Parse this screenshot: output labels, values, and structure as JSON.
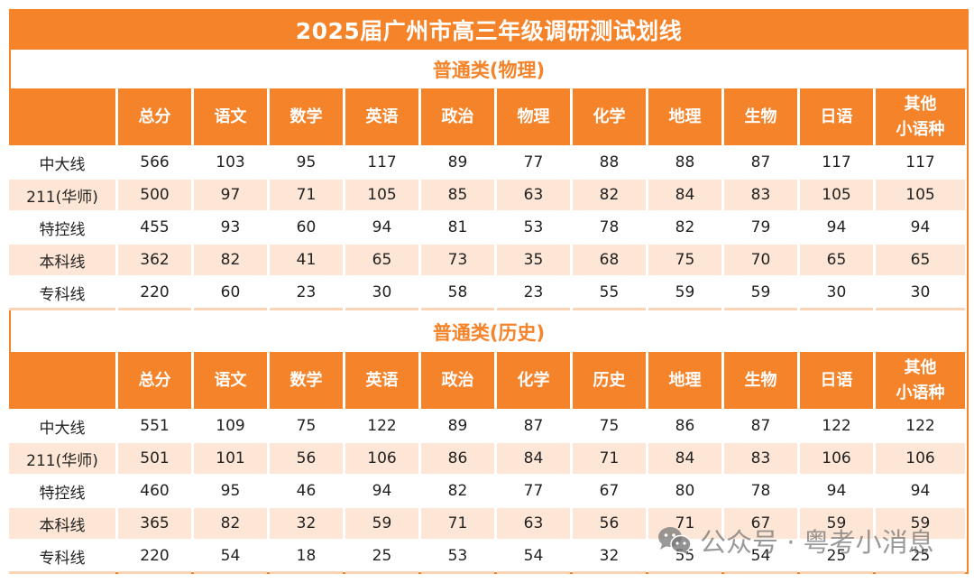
{
  "title": "2025届广州市高三年级调研测试划线",
  "accent_color": "#f5832a",
  "alt_row_color": "#fde6d5",
  "sections": [
    {
      "subtitle": "普通类(物理)",
      "headers": [
        "",
        "总分",
        "语文",
        "数学",
        "英语",
        "政治",
        "物理",
        "化学",
        "地理",
        "生物",
        "日语",
        "其他小语种"
      ],
      "last_header_lines": [
        "其他",
        "小语种"
      ],
      "rows": [
        {
          "label": "中大线",
          "values": [
            "566",
            "103",
            "95",
            "117",
            "89",
            "77",
            "88",
            "88",
            "87",
            "117",
            "117"
          ]
        },
        {
          "label": "211(华师)",
          "values": [
            "500",
            "97",
            "71",
            "105",
            "85",
            "63",
            "82",
            "84",
            "83",
            "105",
            "105"
          ]
        },
        {
          "label": "特控线",
          "values": [
            "455",
            "93",
            "60",
            "94",
            "81",
            "53",
            "78",
            "82",
            "79",
            "94",
            "94"
          ]
        },
        {
          "label": "本科线",
          "values": [
            "362",
            "82",
            "41",
            "65",
            "73",
            "35",
            "68",
            "75",
            "70",
            "65",
            "65"
          ]
        },
        {
          "label": "专科线",
          "values": [
            "220",
            "60",
            "23",
            "30",
            "58",
            "23",
            "55",
            "59",
            "59",
            "30",
            "30"
          ]
        }
      ]
    },
    {
      "subtitle": "普通类(历史)",
      "headers": [
        "",
        "总分",
        "语文",
        "数学",
        "英语",
        "政治",
        "化学",
        "历史",
        "地理",
        "生物",
        "日语",
        "其他小语种"
      ],
      "last_header_lines": [
        "其他",
        "小语种"
      ],
      "rows": [
        {
          "label": "中大线",
          "values": [
            "551",
            "109",
            "75",
            "122",
            "89",
            "87",
            "75",
            "86",
            "87",
            "122",
            "122"
          ]
        },
        {
          "label": "211(华师)",
          "values": [
            "501",
            "101",
            "56",
            "106",
            "86",
            "84",
            "71",
            "84",
            "83",
            "106",
            "106"
          ]
        },
        {
          "label": "特控线",
          "values": [
            "460",
            "95",
            "46",
            "94",
            "82",
            "77",
            "67",
            "80",
            "78",
            "94",
            "94"
          ]
        },
        {
          "label": "本科线",
          "values": [
            "365",
            "82",
            "32",
            "59",
            "71",
            "63",
            "56",
            "71",
            "67",
            "59",
            "59"
          ]
        },
        {
          "label": "专科线",
          "values": [
            "220",
            "54",
            "18",
            "25",
            "53",
            "54",
            "32",
            "55",
            "54",
            "25",
            "25"
          ]
        }
      ]
    }
  ],
  "watermark": {
    "icon": "wechat-icon",
    "text": "公众号 · 粤考小消息"
  }
}
